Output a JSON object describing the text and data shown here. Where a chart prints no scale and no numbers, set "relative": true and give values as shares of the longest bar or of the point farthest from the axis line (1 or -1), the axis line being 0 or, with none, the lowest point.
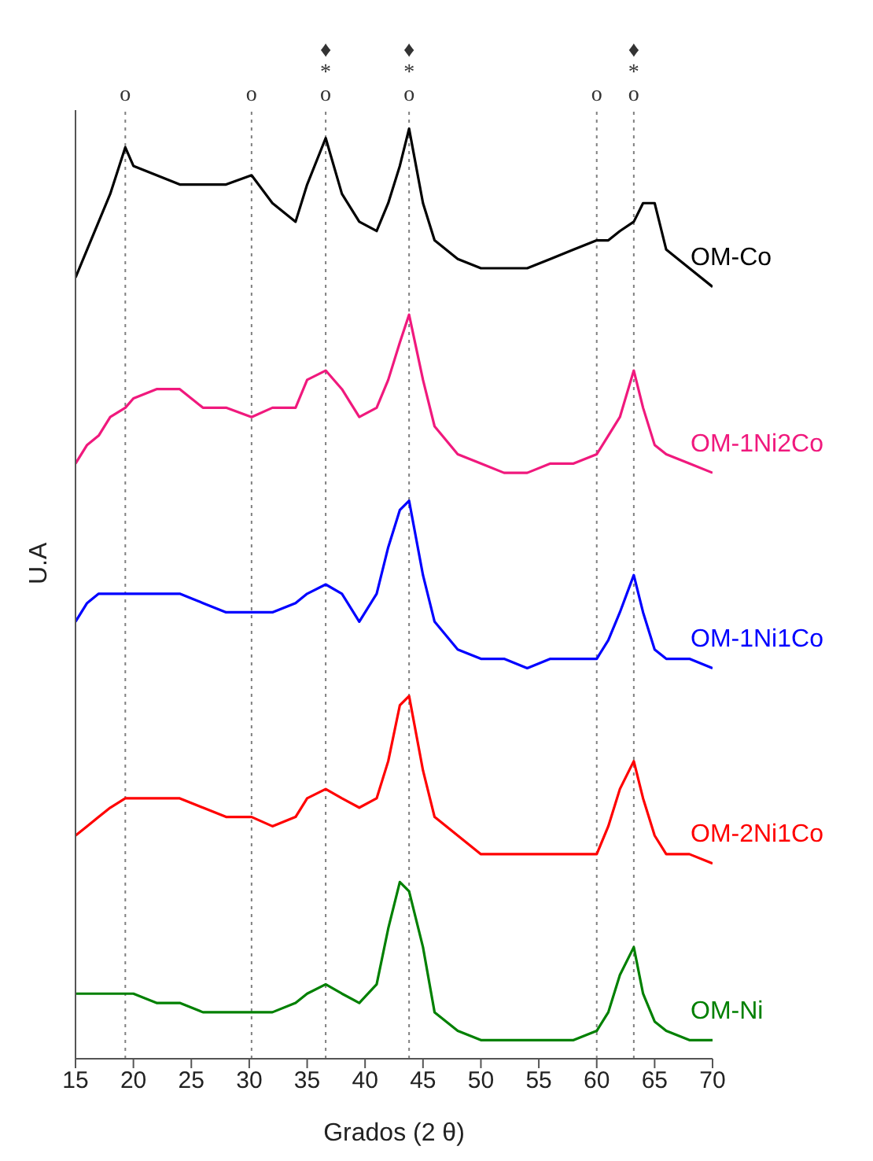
{
  "chart_data": {
    "type": "line",
    "relative": true,
    "xlabel": "Grados (2 θ)",
    "ylabel": "U.A",
    "xlim": [
      15,
      70
    ],
    "xticks": [
      15,
      20,
      25,
      30,
      35,
      40,
      45,
      50,
      55,
      60,
      65,
      70
    ],
    "x": [
      15,
      16,
      17,
      18,
      19.3,
      20,
      22,
      24,
      26,
      28,
      30.2,
      32,
      34,
      35,
      36.6,
      38,
      39.5,
      41,
      42,
      43,
      43.8,
      45,
      46,
      48,
      50,
      52,
      54,
      56,
      58,
      60,
      61,
      62,
      63.2,
      64,
      65,
      66,
      68,
      70
    ],
    "series": [
      {
        "name": "OM-Co",
        "color": "#000000",
        "values": [
          0.84,
          0.87,
          0.9,
          0.93,
          0.98,
          0.96,
          0.95,
          0.94,
          0.94,
          0.94,
          0.95,
          0.92,
          0.9,
          0.94,
          0.99,
          0.93,
          0.9,
          0.89,
          0.92,
          0.96,
          1,
          0.92,
          0.88,
          0.86,
          0.85,
          0.85,
          0.85,
          0.86,
          0.87,
          0.88,
          0.88,
          0.89,
          0.9,
          0.92,
          0.92,
          0.87,
          0.85,
          0.83
        ]
      },
      {
        "name": "OM-1Ni2Co",
        "color": "#f0197d",
        "values": [
          0.64,
          0.66,
          0.67,
          0.69,
          0.7,
          0.71,
          0.72,
          0.72,
          0.7,
          0.7,
          0.69,
          0.7,
          0.7,
          0.73,
          0.74,
          0.72,
          0.69,
          0.7,
          0.73,
          0.77,
          0.8,
          0.73,
          0.68,
          0.65,
          0.64,
          0.63,
          0.63,
          0.64,
          0.64,
          0.65,
          0.67,
          0.69,
          0.74,
          0.7,
          0.66,
          0.65,
          0.64,
          0.63
        ]
      },
      {
        "name": "OM-1Ni1Co",
        "color": "#0000ff",
        "values": [
          0.47,
          0.49,
          0.5,
          0.5,
          0.5,
          0.5,
          0.5,
          0.5,
          0.49,
          0.48,
          0.48,
          0.48,
          0.49,
          0.5,
          0.51,
          0.5,
          0.47,
          0.5,
          0.55,
          0.59,
          0.6,
          0.52,
          0.47,
          0.44,
          0.43,
          0.43,
          0.42,
          0.43,
          0.43,
          0.43,
          0.45,
          0.48,
          0.52,
          0.48,
          0.44,
          0.43,
          0.43,
          0.42
        ]
      },
      {
        "name": "OM-2Ni1Co",
        "color": "#ff0000",
        "values": [
          0.24,
          0.25,
          0.26,
          0.27,
          0.28,
          0.28,
          0.28,
          0.28,
          0.27,
          0.26,
          0.26,
          0.25,
          0.26,
          0.28,
          0.29,
          0.28,
          0.27,
          0.28,
          0.32,
          0.38,
          0.39,
          0.31,
          0.26,
          0.24,
          0.22,
          0.22,
          0.22,
          0.22,
          0.22,
          0.22,
          0.25,
          0.29,
          0.32,
          0.28,
          0.24,
          0.22,
          0.22,
          0.21
        ]
      },
      {
        "name": "OM-Ni",
        "color": "#008000",
        "values": [
          0.07,
          0.07,
          0.07,
          0.07,
          0.07,
          0.07,
          0.06,
          0.06,
          0.05,
          0.05,
          0.05,
          0.05,
          0.06,
          0.07,
          0.08,
          0.07,
          0.06,
          0.08,
          0.14,
          0.19,
          0.18,
          0.12,
          0.05,
          0.03,
          0.02,
          0.02,
          0.02,
          0.02,
          0.02,
          0.03,
          0.05,
          0.09,
          0.12,
          0.07,
          0.04,
          0.03,
          0.02,
          0.02
        ]
      }
    ],
    "ref_lines": [
      {
        "axis": "x",
        "value": 19.3,
        "label": "o",
        "line_style": "dotted",
        "color": "#808080"
      },
      {
        "axis": "x",
        "value": 30.2,
        "label": "o",
        "line_style": "dotted",
        "color": "#808080"
      },
      {
        "axis": "x",
        "value": 36.6,
        "label": "♦\n*\no",
        "line_style": "dotted",
        "color": "#808080"
      },
      {
        "axis": "x",
        "value": 43.8,
        "label": "♦\n*\no",
        "line_style": "dotted",
        "color": "#808080"
      },
      {
        "axis": "x",
        "value": 60,
        "label": "o",
        "line_style": "dotted",
        "color": "#808080"
      },
      {
        "axis": "x",
        "value": 63.2,
        "label": "♦\n*\no",
        "line_style": "dotted",
        "color": "#808080"
      }
    ]
  }
}
